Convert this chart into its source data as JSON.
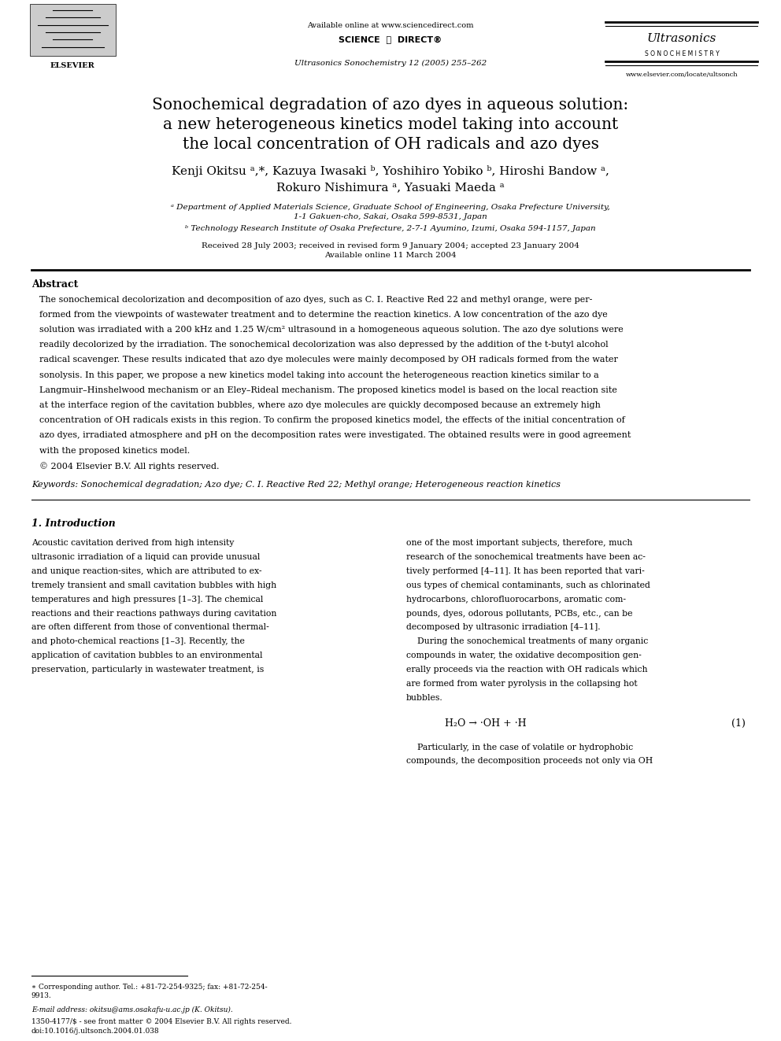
{
  "bg_color": "#ffffff",
  "page_width": 9.92,
  "page_height": 13.23,
  "header": {
    "available_online": "Available online at www.sciencedirect.com",
    "journal_line": "Ultrasonics Sonochemistry 12 (2005) 255–262",
    "website": "www.elsevier.com/locate/ultsonch"
  },
  "title": "Sonochemical degradation of azo dyes in aqueous solution:\na new heterogeneous kinetics model taking into account\nthe local concentration of OH radicals and azo dyes",
  "authors": "Kenji Okitsu ᵃ,*, Kazuya Iwasaki ᵇ, Yoshihiro Yobiko ᵇ, Hiroshi Bandow ᵃ,\nRokuro Nishimura ᵃ, Yasuaki Maeda ᵃ",
  "affil_a": "ᵃ Department of Applied Materials Science, Graduate School of Engineering, Osaka Prefecture University,\n1-1 Gakuen-cho, Sakai, Osaka 599-8531, Japan",
  "affil_b": "ᵇ Technology Research Institute of Osaka Prefecture, 2-7-1 Ayumino, Izumi, Osaka 594-1157, Japan",
  "received": "Received 28 July 2003; received in revised form 9 January 2004; accepted 23 January 2004\nAvailable online 11 March 2004",
  "abstract_title": "Abstract",
  "abstract_text": "The sonochemical decolorization and decomposition of azo dyes, such as C. I. Reactive Red 22 and methyl orange, were per-\nformed from the viewpoints of wastewater treatment and to determine the reaction kinetics. A low concentration of the azo dye\nsolution was irradiated with a 200 kHz and 1.25 W/cm² ultrasound in a homogeneous aqueous solution. The azo dye solutions were\nreadily decolorized by the irradiation. The sonochemical decolorization was also depressed by the addition of the t-butyl alcohol\nradical scavenger. These results indicated that azo dye molecules were mainly decomposed by OH radicals formed from the water\nsonolysis. In this paper, we propose a new kinetics model taking into account the heterogeneous reaction kinetics similar to a\nLangmuir–Hinshelwood mechanism or an Eley–Rideal mechanism. The proposed kinetics model is based on the local reaction site\nat the interface region of the cavitation bubbles, where azo dye molecules are quickly decomposed because an extremely high\nconcentration of OH radicals exists in this region. To confirm the proposed kinetics model, the effects of the initial concentration of\nazo dyes, irradiated atmosphere and pH on the decomposition rates were investigated. The obtained results were in good agreement\nwith the proposed kinetics model.\n© 2004 Elsevier B.V. All rights reserved.",
  "keywords": "Keywords: Sonochemical degradation; Azo dye; C. I. Reactive Red 22; Methyl orange; Heterogeneous reaction kinetics",
  "section1_title": "1. Introduction",
  "section1_col1": "Acoustic cavitation derived from high intensity\nultrasonic irradiation of a liquid can provide unusual\nand unique reaction-sites, which are attributed to ex-\ntremely transient and small cavitation bubbles with high\ntemperatures and high pressures [1–3]. The chemical\nreactions and their reactions pathways during cavitation\nare often different from those of conventional thermal-\nand photo-chemical reactions [1–3]. Recently, the\napplication of cavitation bubbles to an environmental\npreservation, particularly in wastewater treatment, is",
  "section1_col2": "one of the most important subjects, therefore, much\nresearch of the sonochemical treatments have been ac-\ntively performed [4–11]. It has been reported that vari-\nous types of chemical contaminants, such as chlorinated\nhydrocarbons, chlorofluorocarbons, aromatic com-\npounds, dyes, odorous pollutants, PCBs, etc., can be\ndecomposed by ultrasonic irradiation [4–11].\n    During the sonochemical treatments of many organic\ncompounds in water, the oxidative decomposition gen-\nerally proceeds via the reaction with OH radicals which\nare formed from water pyrolysis in the collapsing hot\nbubbles.",
  "equation1": "H₂O → ·OH + ·H",
  "equation1_num": "(1)",
  "section1_col2_cont": "    Particularly, in the case of volatile or hydrophobic\ncompounds, the decomposition proceeds not only via OH",
  "footnote_star": "∗ Corresponding author. Tel.: +81-72-254-9325; fax: +81-72-254-\n9913.",
  "footnote_email": "E-mail address: okitsu@ams.osakafu-u.ac.jp (K. Okitsu).",
  "footnote_issn": "1350-4177/$ - see front matter © 2004 Elsevier B.V. All rights reserved.\ndoi:10.1016/j.ultsonch.2004.01.038",
  "sonochemistry_spaced": "S O N O C H E M I S T R Y"
}
